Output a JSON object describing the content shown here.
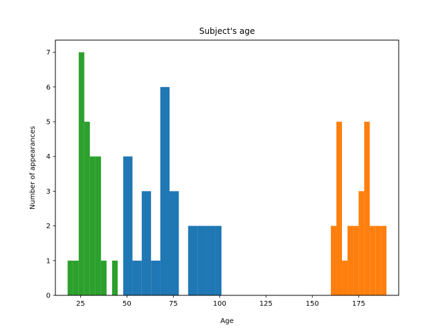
{
  "chart_data": {
    "type": "bar",
    "title": "Subject's age",
    "xlabel": "Age",
    "ylabel": "Number of appearances",
    "xlim": [
      11.4,
      196.6
    ],
    "ylim": [
      0,
      7.35
    ],
    "grid": false,
    "legend": "none",
    "xticks": [
      25,
      50,
      75,
      100,
      125,
      150,
      175
    ],
    "yticks": [
      0,
      1,
      2,
      3,
      4,
      5,
      6,
      7
    ],
    "series": [
      {
        "color": "#2ca02c",
        "bin_width": 3,
        "bins": [
          {
            "x0": 18,
            "x1": 21,
            "value": 1
          },
          {
            "x0": 21,
            "x1": 24,
            "value": 1
          },
          {
            "x0": 24,
            "x1": 27,
            "value": 7
          },
          {
            "x0": 27,
            "x1": 30,
            "value": 5
          },
          {
            "x0": 30,
            "x1": 33,
            "value": 4
          },
          {
            "x0": 33,
            "x1": 36,
            "value": 4
          },
          {
            "x0": 36,
            "x1": 39,
            "value": 1
          },
          {
            "x0": 42,
            "x1": 45,
            "value": 1
          }
        ]
      },
      {
        "color": "#1f77b4",
        "bin_width": 5,
        "bins": [
          {
            "x0": 48,
            "x1": 53,
            "value": 4
          },
          {
            "x0": 53,
            "x1": 58,
            "value": 1
          },
          {
            "x0": 58,
            "x1": 63,
            "value": 3
          },
          {
            "x0": 63,
            "x1": 68,
            "value": 1
          },
          {
            "x0": 68,
            "x1": 73,
            "value": 6
          },
          {
            "x0": 73,
            "x1": 78,
            "value": 3
          },
          {
            "x0": 83,
            "x1": 88,
            "value": 2
          },
          {
            "x0": 88,
            "x1": 93,
            "value": 2
          },
          {
            "x0": 93,
            "x1": 98,
            "value": 2
          },
          {
            "x0": 98,
            "x1": 101,
            "value": 2
          }
        ]
      },
      {
        "color": "#ff7f0e",
        "bin_width": 3,
        "bins": [
          {
            "x0": 160,
            "x1": 163,
            "value": 2
          },
          {
            "x0": 163,
            "x1": 166,
            "value": 5
          },
          {
            "x0": 166,
            "x1": 169,
            "value": 1
          },
          {
            "x0": 169,
            "x1": 172,
            "value": 2
          },
          {
            "x0": 172,
            "x1": 175,
            "value": 2
          },
          {
            "x0": 175,
            "x1": 178,
            "value": 3
          },
          {
            "x0": 178,
            "x1": 181,
            "value": 5
          },
          {
            "x0": 181,
            "x1": 184,
            "value": 2
          },
          {
            "x0": 184,
            "x1": 187,
            "value": 2
          },
          {
            "x0": 187,
            "x1": 190,
            "value": 2
          }
        ]
      }
    ]
  }
}
